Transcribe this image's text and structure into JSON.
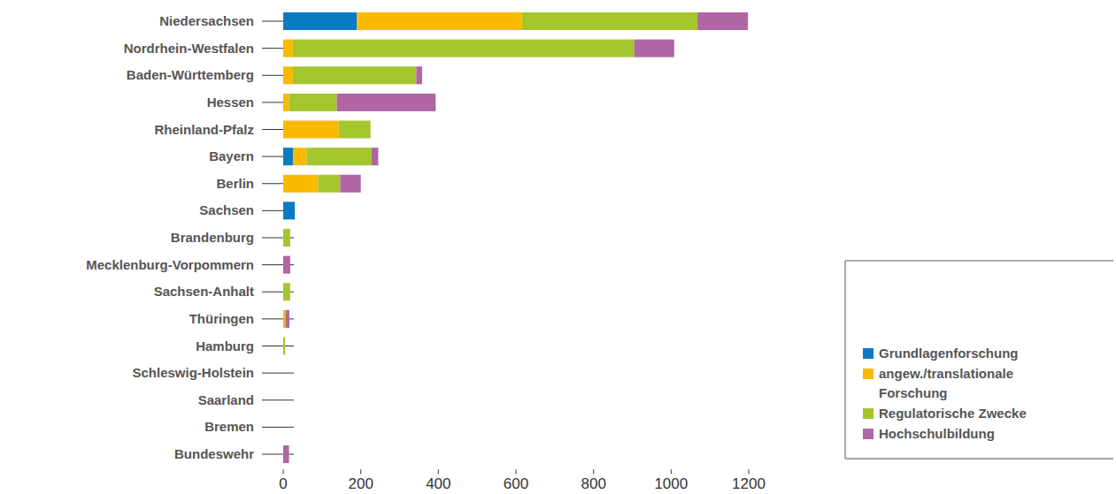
{
  "chart_data": {
    "type": "bar",
    "orientation": "horizontal",
    "stacked": true,
    "grid": false,
    "legend": "bottom-right",
    "categories": [
      "Niedersachsen",
      "Nordrhein-Westfalen",
      "Baden-Württemberg",
      "Hessen",
      "Rheinland-Pfalz",
      "Bayern",
      "Berlin",
      "Sachsen",
      "Brandenburg",
      "Mecklenburg-Vorpommern",
      "Sachsen-Anhalt",
      "Thüringen",
      "Hamburg",
      "Schleswig-Holstein",
      "Saarland",
      "Bremen",
      "Bundeswehr"
    ],
    "series": [
      {
        "name": "Grundlagenforschung",
        "color": "#0a7bc2",
        "values": [
          190,
          0,
          0,
          0,
          0,
          25,
          0,
          30,
          0,
          0,
          0,
          0,
          0,
          0,
          0,
          0,
          0
        ]
      },
      {
        "name": "angew./translationale Forschung",
        "color": "#fbb900",
        "values": [
          425,
          25,
          25,
          15,
          143,
          35,
          90,
          0,
          0,
          0,
          0,
          6,
          0,
          0,
          0,
          0,
          0
        ]
      },
      {
        "name": "Regulatorische Zwecke",
        "color": "#a3c62d",
        "values": [
          453,
          880,
          318,
          123,
          82,
          168,
          57,
          0,
          18,
          0,
          18,
          0,
          5,
          0,
          0,
          0,
          0
        ]
      },
      {
        "name": "Hochschulbildung",
        "color": "#b065a5",
        "values": [
          130,
          103,
          15,
          255,
          0,
          17,
          53,
          0,
          0,
          18,
          0,
          10,
          0,
          0,
          0,
          0,
          15
        ]
      }
    ],
    "xlim": [
      0,
      1200
    ],
    "xticks": [
      0,
      200,
      400,
      600,
      800,
      1000,
      1200
    ]
  }
}
